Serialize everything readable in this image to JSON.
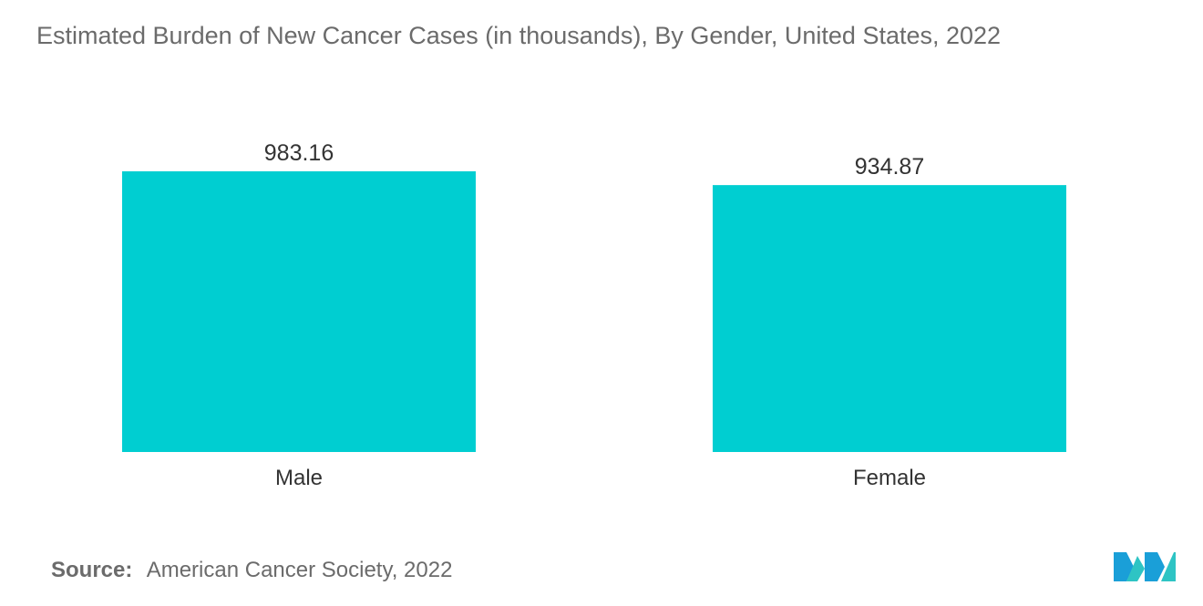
{
  "chart_data": {
    "type": "bar",
    "title": "Estimated Burden of New Cancer Cases (in thousands), By Gender, United States, 2022",
    "categories": [
      "Male",
      "Female"
    ],
    "values": [
      983.16,
      934.87
    ],
    "value_labels": [
      "983.16",
      "934.87"
    ],
    "xlabel": "",
    "ylabel": "",
    "ylim": [
      0,
      983.16
    ],
    "grid": false,
    "legend": "none",
    "bar_color": "#00ced1"
  },
  "footer": {
    "source_label": "Source:",
    "source_text": "American Cancer Society, 2022"
  },
  "logo": {
    "icon": "mordor-intelligence-logo-icon",
    "colors": [
      "#1a9fd8",
      "#2ec4c4"
    ]
  }
}
